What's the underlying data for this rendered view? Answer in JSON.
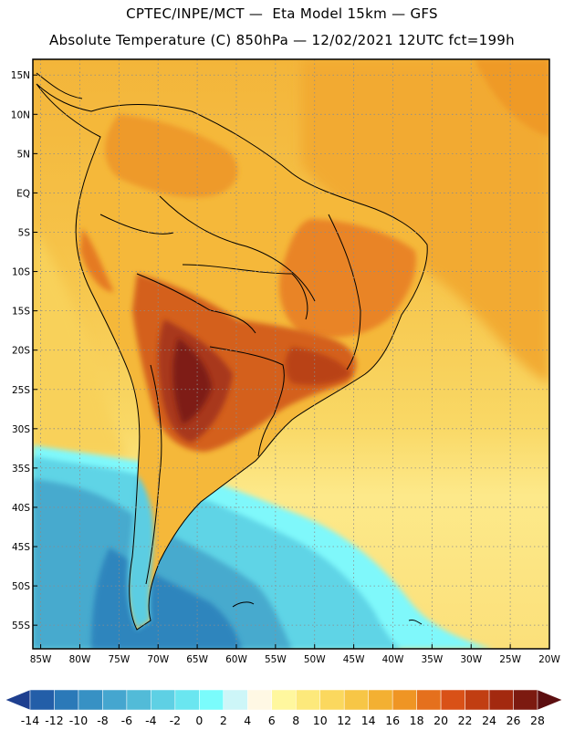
{
  "header": {
    "line1": "CPTEC/INPE/MCT —  Eta Model 15km — GFS",
    "line2": "Absolute Temperature (C) 850hPa — 12/02/2021 12UTC fct=199h"
  },
  "map": {
    "lat_labels": [
      "15N",
      "10N",
      "5N",
      "EQ",
      "5S",
      "10S",
      "15S",
      "20S",
      "25S",
      "30S",
      "35S",
      "40S",
      "45S",
      "50S",
      "55S"
    ],
    "lon_labels": [
      "85W",
      "80W",
      "75W",
      "70W",
      "65W",
      "60W",
      "55W",
      "50W",
      "45W",
      "40W",
      "35W",
      "30W",
      "25W",
      "20W"
    ],
    "lat_values": [
      15,
      10,
      5,
      0,
      -5,
      -10,
      -15,
      -20,
      -25,
      -30,
      -35,
      -40,
      -45,
      -50,
      -55
    ],
    "lon_values": [
      -85,
      -80,
      -75,
      -70,
      -65,
      -60,
      -55,
      -50,
      -45,
      -40,
      -35,
      -30,
      -25,
      -20
    ],
    "lon_range": [
      -86,
      -20
    ],
    "lat_range": [
      -58,
      17
    ]
  },
  "colorbar": {
    "labels": [
      "-14",
      "-12",
      "-10",
      "-8",
      "-6",
      "-4",
      "-2",
      "0",
      "2",
      "4",
      "6",
      "8",
      "10",
      "12",
      "14",
      "16",
      "18",
      "20",
      "22",
      "24",
      "26",
      "28"
    ],
    "colors": [
      "#1e3f8f",
      "#235ea8",
      "#2b79b8",
      "#3791c4",
      "#45a6cf",
      "#52bbd8",
      "#5ed0e4",
      "#6ae6f0",
      "#7afcfc",
      "#cdf6f8",
      "#fff8e4",
      "#fff79e",
      "#fde97b",
      "#fbd85e",
      "#f7c646",
      "#f3b032",
      "#ef9524",
      "#e5701d",
      "#d95117",
      "#c13e12",
      "#a3290f",
      "#7c1a10",
      "#5c0e10"
    ]
  },
  "colors": {
    "frame": "#000000",
    "grid": "#8c8c8c"
  }
}
